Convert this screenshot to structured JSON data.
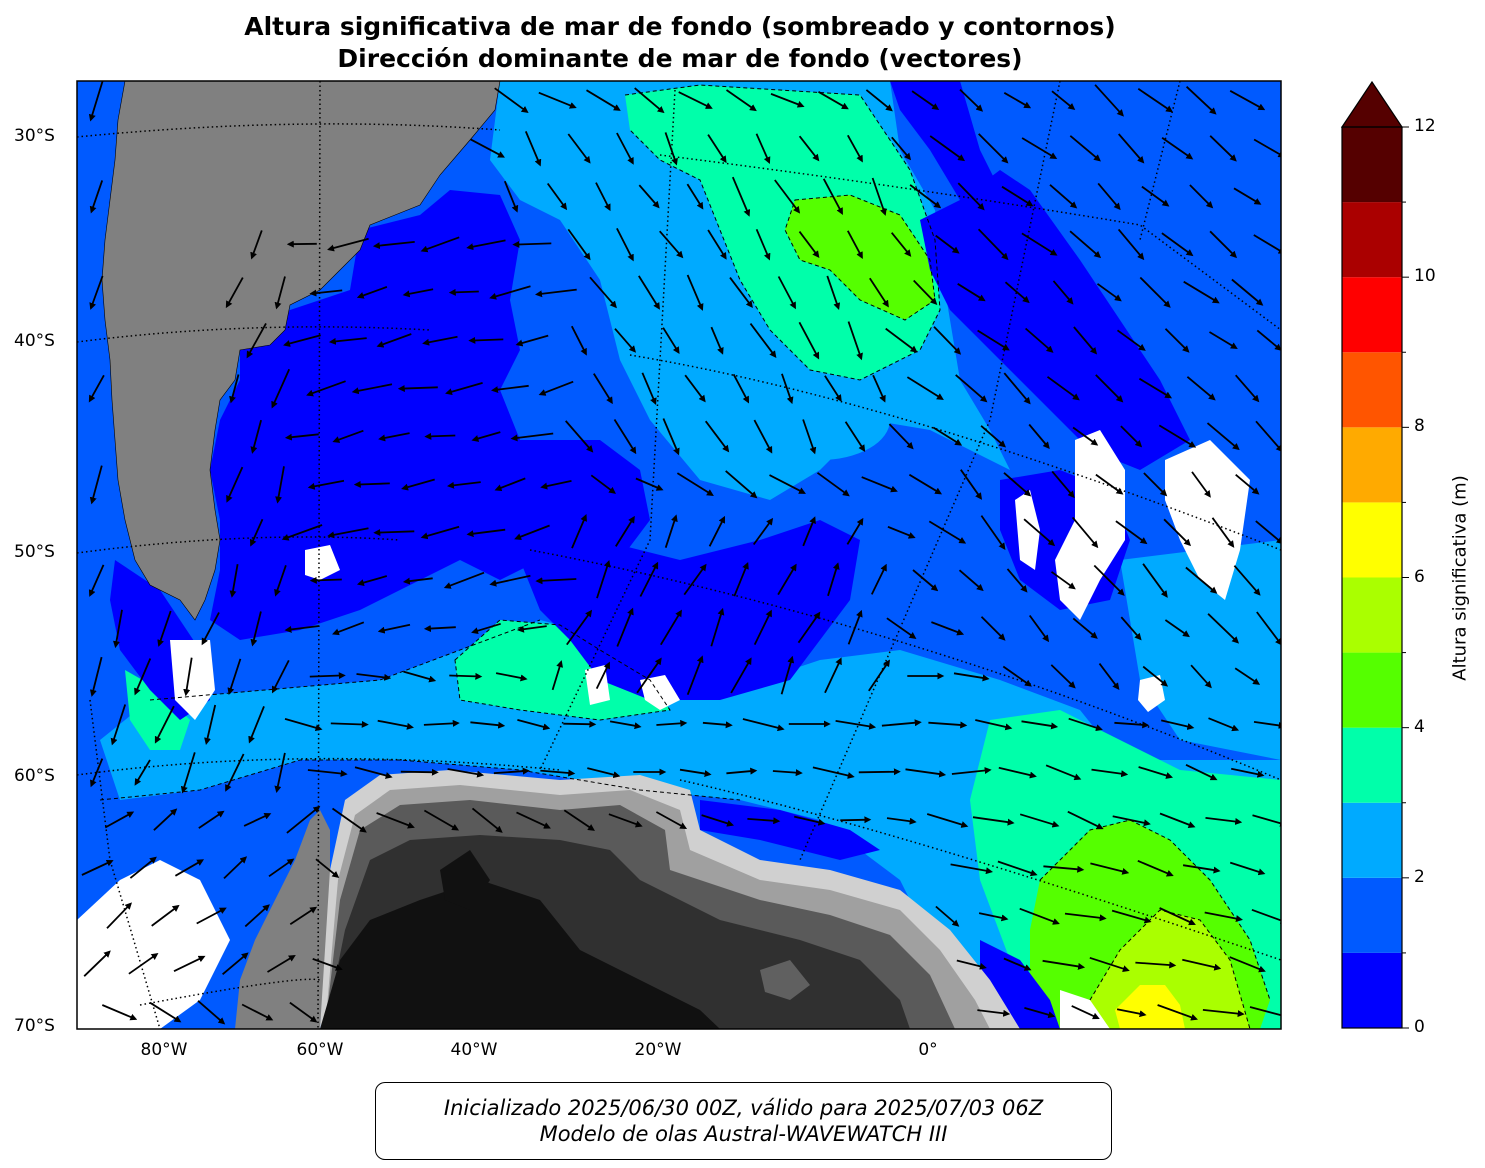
{
  "title": {
    "line1": "Altura significativa de mar de fondo (sombreado y contornos)",
    "line2": "Dirección dominante de mar de fondo (vectores)"
  },
  "map": {
    "lon_range": [
      -90,
      40
    ],
    "lat_range": [
      -70,
      -27
    ],
    "lat_ticks": [
      {
        "value": -30,
        "label": "30°S"
      },
      {
        "value": -40,
        "label": "40°S"
      },
      {
        "value": -50,
        "label": "50°S"
      },
      {
        "value": -60,
        "label": "60°S"
      },
      {
        "value": -70,
        "label": "70°S"
      }
    ],
    "lon_ticks": [
      {
        "value": -80,
        "label": "80°W"
      },
      {
        "value": -60,
        "label": "60°W"
      },
      {
        "value": -40,
        "label": "40°W"
      },
      {
        "value": -20,
        "label": "20°W"
      },
      {
        "value": 0,
        "label": "0°"
      }
    ],
    "background_color": "#005aff",
    "land_color": "#808080",
    "gridlines": true
  },
  "colorbar": {
    "label": "Altura significativa (m)",
    "min": 0,
    "max": 12,
    "extend": "max",
    "steps": [
      {
        "from": 0,
        "to": 1,
        "color": "#0000ff"
      },
      {
        "from": 1,
        "to": 2,
        "color": "#005aff"
      },
      {
        "from": 2,
        "to": 3,
        "color": "#00aaff"
      },
      {
        "from": 3,
        "to": 4,
        "color": "#00ffaa"
      },
      {
        "from": 4,
        "to": 5,
        "color": "#55ff00"
      },
      {
        "from": 5,
        "to": 6,
        "color": "#aaff00"
      },
      {
        "from": 6,
        "to": 7,
        "color": "#ffff00"
      },
      {
        "from": 7,
        "to": 8,
        "color": "#ffaa00"
      },
      {
        "from": 8,
        "to": 9,
        "color": "#ff5500"
      },
      {
        "from": 9,
        "to": 10,
        "color": "#ff0000"
      },
      {
        "from": 10,
        "to": 11,
        "color": "#aa0000"
      },
      {
        "from": 11,
        "to": 12,
        "color": "#550000"
      }
    ],
    "extend_color": "#550000",
    "ticks": [
      {
        "value": 0,
        "label": "0"
      },
      {
        "value": 2,
        "label": "2"
      },
      {
        "value": 4,
        "label": "4"
      },
      {
        "value": 6,
        "label": "6"
      },
      {
        "value": 8,
        "label": "8"
      },
      {
        "value": 10,
        "label": "10"
      },
      {
        "value": 12,
        "label": "12"
      }
    ]
  },
  "footer": {
    "line1": "Inicializado 2025/06/30 00Z, válido para 2025/07/03 06Z",
    "line2": "Modelo de olas Austral-WAVEWATCH III"
  }
}
